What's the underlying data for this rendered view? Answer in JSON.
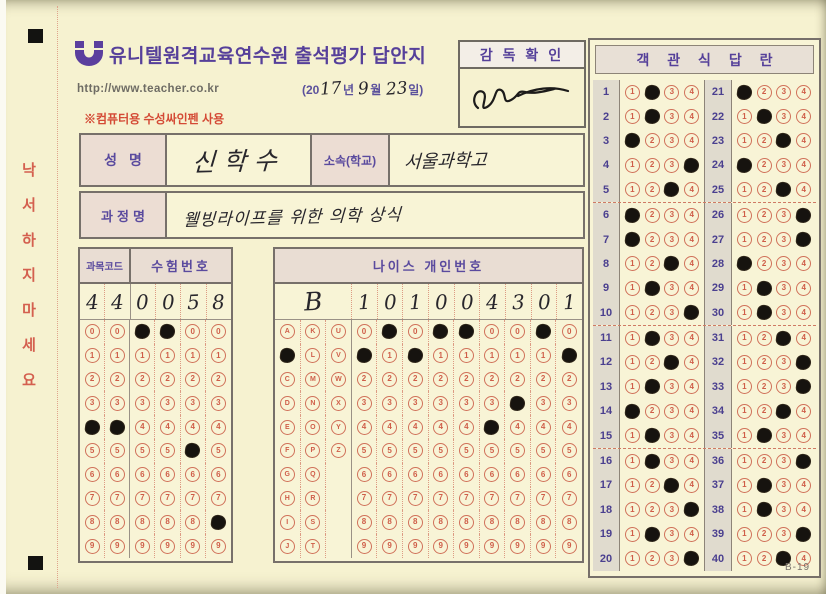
{
  "page": {
    "margin_chars": [
      "낙",
      "서",
      "하",
      "지",
      "마",
      "세",
      "요"
    ],
    "form_code": "B-19"
  },
  "header": {
    "title": "유니텔원격교육연수원 출석평가 답안지",
    "url": "http://www.teacher.co.kr",
    "note": "※컴퓨터용 수성싸인펜 사용",
    "supervisor_label": "감 독 확 인",
    "date": {
      "p1": "(20",
      "year": "17",
      "p2": "년",
      "month": "9",
      "p3": "월",
      "day": "23",
      "p4": "일)"
    }
  },
  "fields": {
    "name_label": "성명",
    "name_value": "신학수",
    "school_label": "소속(학교)",
    "school_value": "서울과학고",
    "course_label": "과정명",
    "course_value": "웰빙라이프를 위한 의학 상식"
  },
  "code_grid": {
    "subject_header": "과목코드",
    "exam_header": "수험번호",
    "written_digits": [
      "4",
      "4",
      "0",
      "0",
      "5",
      "8"
    ],
    "filled_rows": [
      4,
      4,
      0,
      0,
      5,
      8
    ],
    "digit_rows": 10
  },
  "neis_grid": {
    "header": "나이스 개인번호",
    "written_letter": "B",
    "written_digits": [
      "1",
      "0",
      "1",
      "0",
      "0",
      "4",
      "3",
      "0",
      "1"
    ],
    "letter_columns": [
      "ABCDEFGHIJ",
      "KLMNOPQRST",
      "UVWXYZ"
    ],
    "letter_filled": {
      "column": 0,
      "row": 1
    },
    "digit_filled": [
      1,
      0,
      1,
      0,
      0,
      4,
      3,
      0,
      1
    ]
  },
  "answers": {
    "header": "객 관 식 답 란",
    "choices": 4,
    "marked": [
      2,
      2,
      1,
      4,
      3,
      1,
      1,
      3,
      2,
      4,
      2,
      3,
      2,
      1,
      2,
      2,
      3,
      4,
      2,
      4,
      1,
      2,
      3,
      1,
      3,
      4,
      4,
      1,
      2,
      2,
      3,
      4,
      4,
      3,
      2,
      4,
      2,
      2,
      4,
      3
    ]
  }
}
